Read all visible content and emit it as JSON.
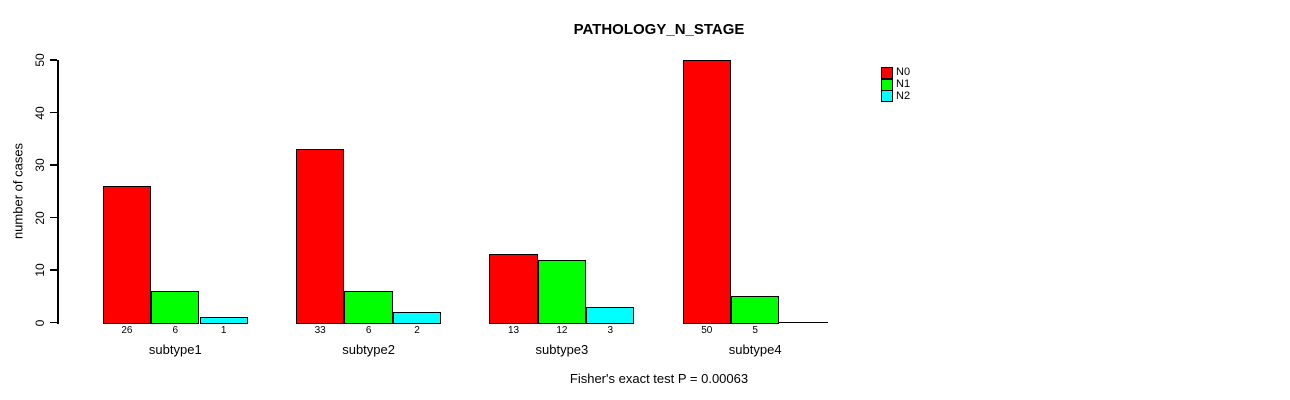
{
  "chart_data": {
    "type": "bar",
    "title": "PATHOLOGY_N_STAGE",
    "subtitle": "Fisher's exact test P = 0.00063",
    "xlabel": "",
    "ylabel": "number of cases",
    "categories": [
      "subtype1",
      "subtype2",
      "subtype3",
      "subtype4"
    ],
    "series": [
      {
        "name": "N0",
        "color": "#ff0000",
        "values": [
          26,
          33,
          13,
          50
        ]
      },
      {
        "name": "N1",
        "color": "#00ff00",
        "values": [
          6,
          6,
          12,
          5
        ]
      },
      {
        "name": "N2",
        "color": "#00ffff",
        "values": [
          1,
          2,
          3,
          0
        ]
      }
    ],
    "ylim": [
      0,
      50
    ],
    "yticks": [
      0,
      10,
      20,
      30,
      40,
      50
    ],
    "grid": false,
    "legend_position": "top-right",
    "bar_value_labels_below_axis": true,
    "zero_value_labels_hidden": true,
    "border_color": "#000000",
    "background_color": "#ffffff"
  }
}
